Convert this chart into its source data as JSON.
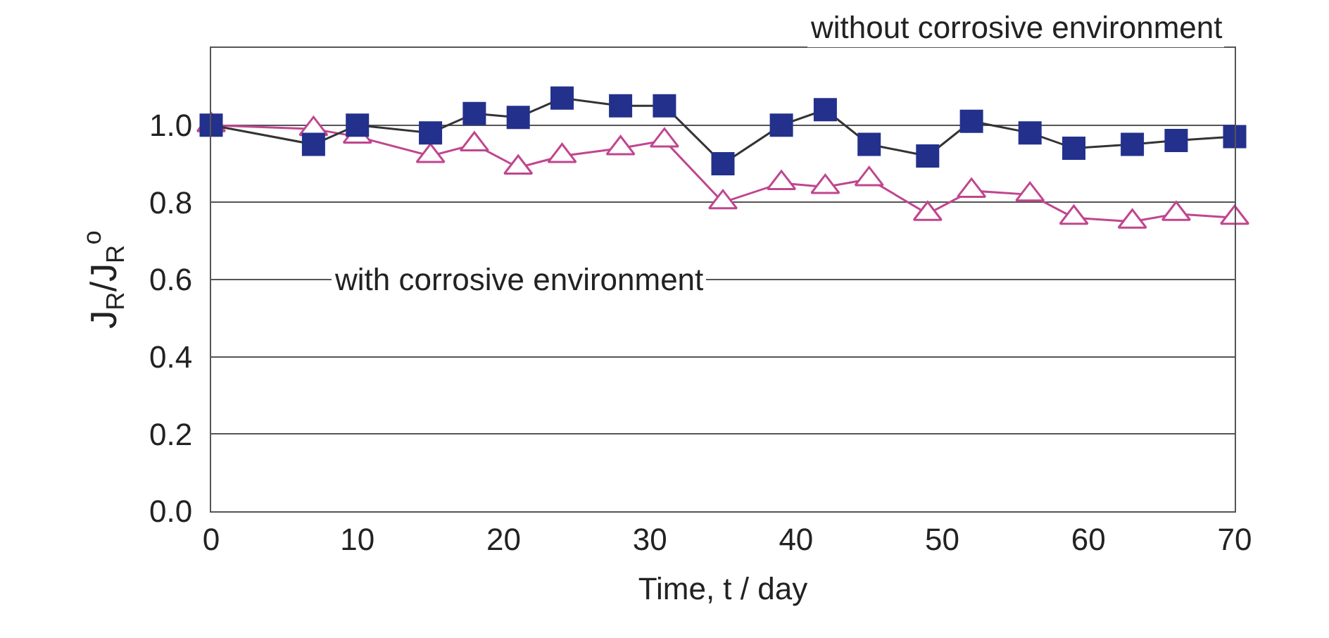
{
  "chart_data": {
    "type": "line",
    "xlabel": "Time, t / day",
    "ylabel": "J$_{R}$/J$_{R}$$^{o}$",
    "xlim": [
      0,
      70
    ],
    "xticks": [
      0,
      10,
      20,
      30,
      40,
      50,
      60,
      70
    ],
    "ylim": [
      0,
      1.2
    ],
    "yticks": [
      {
        "value": 0,
        "label": "0.0"
      },
      0.2,
      0.4,
      0.6,
      0.8,
      {
        "value": 1,
        "label": "1.0"
      },
      {
        "value": 1.2,
        "label": null
      }
    ],
    "grid": "y",
    "legend": false,
    "x": [
      0,
      7,
      10,
      15,
      18,
      21,
      24,
      28,
      31,
      35,
      39,
      42,
      45,
      49,
      52,
      56,
      59,
      63,
      66,
      70
    ],
    "series": [
      {
        "name": "without corrosive environment",
        "color": "#23318c",
        "marker": "square",
        "values": [
          1.0,
          0.95,
          1.0,
          0.98,
          1.03,
          1.02,
          1.07,
          1.05,
          1.05,
          0.9,
          1.0,
          1.04,
          0.95,
          0.92,
          1.01,
          0.98,
          0.94,
          0.95,
          0.96,
          0.97
        ]
      },
      {
        "name": "with corrosive environment",
        "color": "#c0468f",
        "marker": "triangle",
        "values": [
          1.0,
          0.99,
          0.97,
          0.92,
          0.95,
          0.89,
          0.92,
          0.94,
          0.96,
          0.8,
          0.85,
          0.84,
          0.86,
          0.77,
          0.83,
          0.82,
          0.76,
          0.75,
          0.77,
          0.76
        ]
      }
    ]
  }
}
